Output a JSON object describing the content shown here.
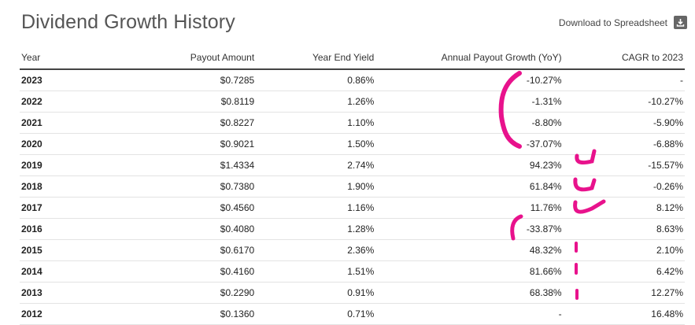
{
  "header": {
    "title": "Dividend Growth History",
    "download_label": "Download to Spreadsheet",
    "download_icon": "download-icon"
  },
  "table": {
    "columns": [
      "Year",
      "Payout Amount",
      "Year End Yield",
      "Annual Payout Growth (YoY)",
      "CAGR to 2023"
    ],
    "rows": [
      [
        "2023",
        "$0.7285",
        "0.86%",
        "-10.27%",
        "-"
      ],
      [
        "2022",
        "$0.8119",
        "1.26%",
        "-1.31%",
        "-10.27%"
      ],
      [
        "2021",
        "$0.8227",
        "1.10%",
        "-8.80%",
        "-5.90%"
      ],
      [
        "2020",
        "$0.9021",
        "1.50%",
        "-37.07%",
        "-6.88%"
      ],
      [
        "2019",
        "$1.4334",
        "2.74%",
        "94.23%",
        "-15.57%"
      ],
      [
        "2018",
        "$0.7380",
        "1.90%",
        "61.84%",
        "-0.26%"
      ],
      [
        "2017",
        "$0.4560",
        "1.16%",
        "11.76%",
        "8.12%"
      ],
      [
        "2016",
        "$0.4080",
        "1.28%",
        "-33.87%",
        "8.63%"
      ],
      [
        "2015",
        "$0.6170",
        "2.36%",
        "48.32%",
        "2.10%"
      ],
      [
        "2014",
        "$0.4160",
        "1.51%",
        "81.66%",
        "6.42%"
      ],
      [
        "2013",
        "$0.2290",
        "0.91%",
        "68.38%",
        "12.27%"
      ],
      [
        "2012",
        "$0.1360",
        "0.71%",
        "-",
        "16.48%"
      ]
    ]
  },
  "annotation_color": "#e8128c"
}
